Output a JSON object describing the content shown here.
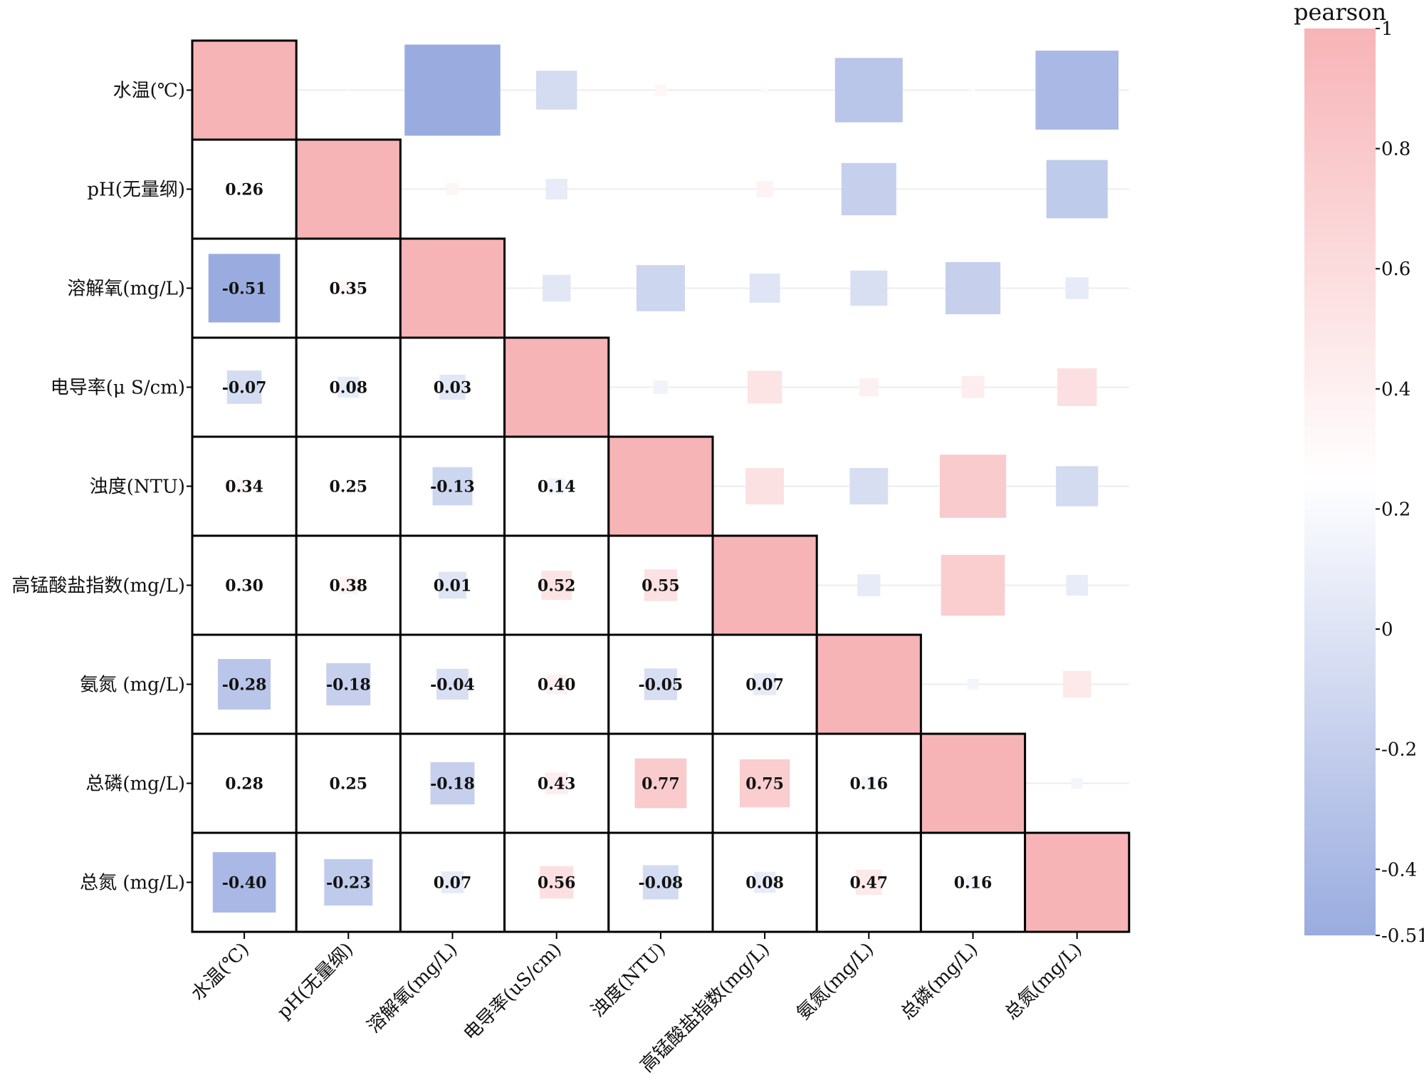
{
  "chart_data": {
    "type": "heatmap",
    "title": "",
    "variables": [
      "水温(℃)",
      "pH(无量纲)",
      "溶解氧(mg/L)",
      "电导率(μ S/cm)",
      "浊度(NTU)",
      "高锰酸盐指数(mg/L)",
      "氨氮 (mg/L)",
      "总磷(mg/L)",
      "总氮 (mg/L)"
    ],
    "row_labels": [
      "水温(℃)",
      "pH(无量纲)",
      "溶解氧(mg/L)",
      "电导率(μ S/cm)",
      "浊度(NTU)",
      "高锰酸盐指数(mg/L)",
      "氨氮 (mg/L)",
      "总磷(mg/L)",
      "总氮 (mg/L)"
    ],
    "column_labels": [
      "水温(℃)",
      "pH(无量纲)",
      "溶解氧(mg/L)",
      "电导率(uS/cm)",
      "浊度(NTU)",
      "高锰酸盐指数(mg/L)",
      "氨氮(mg/L)",
      "总磷(mg/L)",
      "总氮(mg/L)"
    ],
    "matrix": [
      [
        1,
        0.26,
        -0.51,
        -0.07,
        0.34,
        0.3,
        -0.28,
        0.28,
        -0.4
      ],
      [
        0.26,
        1,
        0.35,
        0.08,
        0.25,
        0.38,
        -0.18,
        0.25,
        -0.23
      ],
      [
        -0.51,
        0.35,
        1,
        0.03,
        -0.13,
        0.01,
        -0.04,
        -0.18,
        0.07
      ],
      [
        -0.07,
        0.08,
        0.03,
        1,
        0.14,
        0.52,
        0.4,
        0.43,
        0.56
      ],
      [
        0.34,
        0.25,
        -0.13,
        0.14,
        1,
        0.55,
        -0.05,
        0.77,
        -0.08
      ],
      [
        0.3,
        0.38,
        0.01,
        0.52,
        0.55,
        1,
        0.07,
        0.75,
        0.08
      ],
      [
        -0.28,
        -0.18,
        -0.04,
        0.4,
        -0.05,
        0.07,
        1,
        0.16,
        0.47
      ],
      [
        0.28,
        0.25,
        -0.18,
        0.43,
        0.77,
        0.75,
        0.16,
        1,
        0.16
      ],
      [
        -0.4,
        -0.23,
        0.07,
        0.56,
        -0.08,
        0.08,
        0.47,
        0.16,
        1
      ]
    ],
    "value_labels": [
      [
        null,
        null,
        null,
        null,
        null,
        null,
        null,
        null,
        null
      ],
      [
        "0.26",
        null,
        null,
        null,
        null,
        null,
        null,
        null,
        null
      ],
      [
        "-0.51",
        "0.35",
        null,
        null,
        null,
        null,
        null,
        null,
        null
      ],
      [
        "-0.07",
        "0.08",
        "0.03",
        null,
        null,
        null,
        null,
        null,
        null
      ],
      [
        "0.34",
        "0.25",
        "-0.13",
        "0.14",
        null,
        null,
        null,
        null,
        null
      ],
      [
        "0.30",
        "0.38",
        "0.01",
        "0.52",
        "0.55",
        null,
        null,
        null,
        null
      ],
      [
        "-0.28",
        "-0.18",
        "-0.04",
        "0.40",
        "-0.05",
        "0.07",
        null,
        null,
        null
      ],
      [
        "0.28",
        "0.25",
        "-0.18",
        "0.43",
        "0.77",
        "0.75",
        "0.16",
        null,
        null
      ],
      [
        "-0.40",
        "-0.23",
        "0.07",
        "0.56",
        "-0.08",
        "0.08",
        "0.47",
        "0.16",
        null
      ]
    ],
    "colorbar": {
      "title": "pearson",
      "min": -0.51,
      "max": 1,
      "ticks": [
        1,
        0.8,
        0.6,
        0.4,
        0.2,
        0,
        -0.2,
        -0.4,
        -0.51
      ],
      "tick_labels": [
        "1",
        "0.8",
        "0.6",
        "0.4",
        "0.2",
        "0",
        "-0.2",
        "-0.4",
        "-0.51"
      ],
      "color_high": "#f7b4b7",
      "color_mid": "#ffffff",
      "color_low": "#9aacdf",
      "mid_value": 0.25
    },
    "legend_position": "right"
  }
}
